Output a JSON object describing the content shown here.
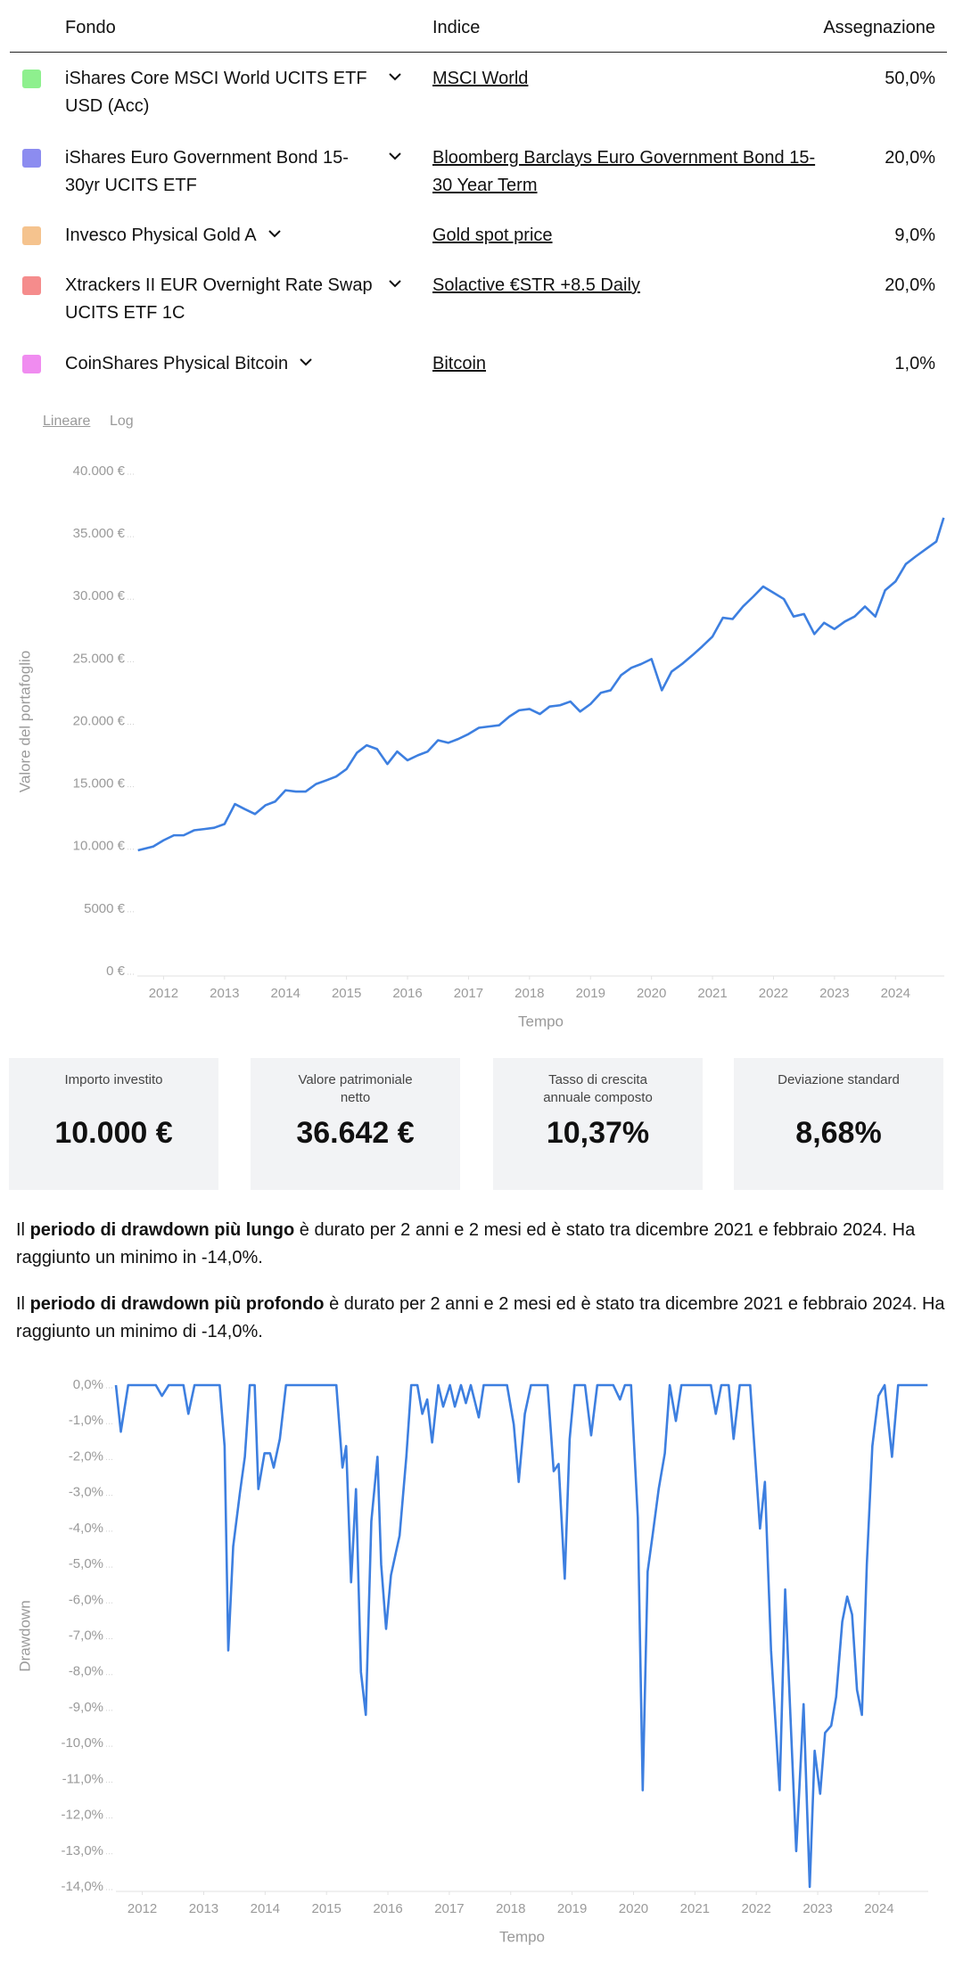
{
  "table": {
    "headers": [
      "Fondo",
      "Indice",
      "Assegnazione"
    ],
    "rows": [
      {
        "color": "#8ef08e",
        "fund": "iShares Core MSCI World UCITS ETF USD (Acc)",
        "index": "MSCI World",
        "allocation": "50,0%"
      },
      {
        "color": "#8c8cf0",
        "fund": "iShares Euro Government Bond 15-30yr UCITS ETF",
        "index": "Bloomberg Barclays Euro Government Bond 15-30 Year Term",
        "allocation": "20,0%"
      },
      {
        "color": "#f5c38e",
        "fund": "Invesco Physical Gold A",
        "index": "Gold spot price",
        "allocation": "9,0%"
      },
      {
        "color": "#f58c8c",
        "fund": "Xtrackers II EUR Overnight Rate Swap UCITS ETF 1C",
        "index": "Solactive €STR +8.5 Daily",
        "allocation": "20,0%"
      },
      {
        "color": "#f08cf0",
        "fund": "CoinShares Physical Bitcoin",
        "index": "Bitcoin",
        "allocation": "1,0%"
      }
    ]
  },
  "scale_toggle": [
    "Lineare",
    "Log"
  ],
  "chart_data": [
    {
      "type": "line",
      "xlabel": "Tempo",
      "ylabel": "Valore del portafoglio",
      "color": "#3d7fe0",
      "x": [
        2011.58,
        2011.83,
        2012.0,
        2012.17,
        2012.33,
        2012.5,
        2012.67,
        2012.83,
        2013.0,
        2013.17,
        2013.33,
        2013.5,
        2013.67,
        2013.83,
        2014.0,
        2014.17,
        2014.33,
        2014.5,
        2014.67,
        2014.83,
        2015.0,
        2015.17,
        2015.33,
        2015.5,
        2015.67,
        2015.83,
        2016.0,
        2016.17,
        2016.33,
        2016.5,
        2016.67,
        2016.83,
        2017.0,
        2017.17,
        2017.33,
        2017.5,
        2017.67,
        2017.83,
        2018.0,
        2018.17,
        2018.33,
        2018.5,
        2018.67,
        2018.83,
        2019.0,
        2019.17,
        2019.33,
        2019.5,
        2019.67,
        2019.83,
        2020.0,
        2020.17,
        2020.33,
        2020.5,
        2020.67,
        2020.83,
        2021.0,
        2021.17,
        2021.33,
        2021.5,
        2021.67,
        2021.83,
        2022.0,
        2022.17,
        2022.33,
        2022.5,
        2022.67,
        2022.83,
        2023.0,
        2023.17,
        2023.33,
        2023.5,
        2023.67,
        2023.83,
        2024.0,
        2024.17,
        2024.33,
        2024.5,
        2024.67,
        2024.79
      ],
      "values": [
        9700,
        10000,
        10500,
        10900,
        10900,
        11300,
        11400,
        11500,
        11800,
        13400,
        13000,
        12600,
        13300,
        13600,
        14500,
        14400,
        14400,
        15000,
        15300,
        15600,
        16200,
        17500,
        18100,
        17800,
        16600,
        17600,
        16900,
        17300,
        17600,
        18500,
        18300,
        18600,
        19000,
        19500,
        19600,
        19700,
        20400,
        20900,
        21000,
        20600,
        21200,
        21300,
        21600,
        20800,
        21400,
        22300,
        22500,
        23700,
        24300,
        24600,
        25000,
        22500,
        24000,
        24600,
        25300,
        26000,
        26800,
        28300,
        28200,
        29200,
        30000,
        30800,
        30300,
        29800,
        28400,
        28600,
        27000,
        27900,
        27400,
        28000,
        28400,
        29200,
        28400,
        30500,
        31200,
        32600,
        33200,
        33800,
        34400,
        36300
      ],
      "xlim": [
        2011.57,
        2024.8
      ],
      "xticks": [
        2012,
        2013,
        2014,
        2015,
        2016,
        2017,
        2018,
        2019,
        2020,
        2021,
        2022,
        2023,
        2024
      ],
      "ylim": [
        0,
        40000
      ],
      "yticks": [
        {
          "value": 0,
          "label": "0 €"
        },
        {
          "value": 5000,
          "label": "5000 €"
        },
        {
          "value": 10000,
          "label": "10.000 €"
        },
        {
          "value": 15000,
          "label": "15.000 €"
        },
        {
          "value": 20000,
          "label": "20.000 €"
        },
        {
          "value": 25000,
          "label": "25.000 €"
        },
        {
          "value": 30000,
          "label": "30.000 €"
        },
        {
          "value": 35000,
          "label": "35.000 €"
        },
        {
          "value": 40000,
          "label": "40.000 €"
        }
      ]
    },
    {
      "type": "line",
      "xlabel": "Tempo",
      "ylabel": "Drawdown",
      "color": "#3d7fe0",
      "x": [
        2011.57,
        2011.65,
        2011.77,
        2012.22,
        2012.32,
        2012.43,
        2012.67,
        2012.75,
        2012.85,
        2013.26,
        2013.34,
        2013.4,
        2013.48,
        2013.59,
        2013.67,
        2013.75,
        2013.83,
        2013.89,
        2013.99,
        2014.08,
        2014.14,
        2014.24,
        2014.34,
        2015.16,
        2015.26,
        2015.32,
        2015.4,
        2015.48,
        2015.56,
        2015.64,
        2015.73,
        2015.83,
        2015.89,
        2015.97,
        2016.05,
        2016.19,
        2016.3,
        2016.38,
        2016.48,
        2016.56,
        2016.64,
        2016.72,
        2016.82,
        2016.9,
        2017.01,
        2017.09,
        2017.19,
        2017.27,
        2017.35,
        2017.48,
        2017.56,
        2017.94,
        2018.05,
        2018.13,
        2018.23,
        2018.33,
        2018.6,
        2018.7,
        2018.78,
        2018.88,
        2018.96,
        2019.04,
        2019.21,
        2019.31,
        2019.41,
        2019.67,
        2019.78,
        2019.86,
        2019.96,
        2020.07,
        2020.15,
        2020.23,
        2020.31,
        2020.41,
        2020.51,
        2020.59,
        2020.69,
        2020.78,
        2021.26,
        2021.34,
        2021.43,
        2021.55,
        2021.63,
        2021.73,
        2021.9,
        2022.0,
        2022.06,
        2022.14,
        2022.24,
        2022.38,
        2022.47,
        2022.55,
        2022.65,
        2022.77,
        2022.87,
        2022.95,
        2023.04,
        2023.12,
        2023.22,
        2023.3,
        2023.4,
        2023.48,
        2023.56,
        2023.64,
        2023.72,
        2023.8,
        2023.89,
        2023.99,
        2024.09,
        2024.21,
        2024.31,
        2024.79
      ],
      "values": [
        0,
        -1.3,
        0,
        0,
        -0.3,
        0,
        0,
        -0.8,
        0,
        0,
        -1.7,
        -7.4,
        -4.5,
        -3.0,
        -2.0,
        0,
        0,
        -2.9,
        -1.9,
        -1.9,
        -2.3,
        -1.5,
        0,
        0,
        -2.3,
        -1.7,
        -5.5,
        -2.9,
        -8.0,
        -9.2,
        -3.8,
        -2.0,
        -5.0,
        -6.8,
        -5.3,
        -4.2,
        -2.0,
        0,
        0,
        -0.8,
        -0.4,
        -1.6,
        0,
        -0.6,
        0,
        -0.6,
        0,
        -0.5,
        0,
        -0.9,
        0,
        0,
        -1.1,
        -2.7,
        -0.8,
        0,
        0,
        -2.4,
        -2.2,
        -5.4,
        -1.5,
        0,
        0,
        -1.4,
        0,
        0,
        -0.4,
        0,
        0,
        -3.7,
        -11.3,
        -5.2,
        -4.2,
        -2.9,
        -1.9,
        0,
        -1.0,
        0,
        0,
        -0.8,
        0,
        0,
        -1.5,
        0,
        0,
        -2.5,
        -4.0,
        -2.7,
        -7.4,
        -11.3,
        -5.7,
        -9.0,
        -13.0,
        -8.9,
        -14.0,
        -10.2,
        -11.4,
        -9.7,
        -9.5,
        -8.7,
        -6.6,
        -5.9,
        -6.4,
        -8.5,
        -9.2,
        -5.0,
        -1.7,
        -0.3,
        0,
        -2.0,
        0,
        0
      ],
      "xlim": [
        2011.57,
        2024.8
      ],
      "xticks": [
        2012,
        2013,
        2014,
        2015,
        2016,
        2017,
        2018,
        2019,
        2020,
        2021,
        2022,
        2023,
        2024
      ],
      "ylim": [
        -14,
        0
      ],
      "yticks": [
        {
          "value": 0,
          "label": "0,0%"
        },
        {
          "value": -1,
          "label": "-1,0%"
        },
        {
          "value": -2,
          "label": "-2,0%"
        },
        {
          "value": -3,
          "label": "-3,0%"
        },
        {
          "value": -4,
          "label": "-4,0%"
        },
        {
          "value": -5,
          "label": "-5,0%"
        },
        {
          "value": -6,
          "label": "-6,0%"
        },
        {
          "value": -7,
          "label": "-7,0%"
        },
        {
          "value": -8,
          "label": "-8,0%"
        },
        {
          "value": -9,
          "label": "-9,0%"
        },
        {
          "value": -10,
          "label": "-10,0%"
        },
        {
          "value": -11,
          "label": "-11,0%"
        },
        {
          "value": -12,
          "label": "-12,0%"
        },
        {
          "value": -13,
          "label": "-13,0%"
        },
        {
          "value": -14,
          "label": "-14,0%"
        }
      ]
    }
  ],
  "stats": [
    {
      "label": "Importo investito",
      "value": "10.000 €"
    },
    {
      "label": "Valore patrimoniale netto",
      "value": "36.642 €"
    },
    {
      "label": "Tasso di crescita annuale composto",
      "value": "10,37%"
    },
    {
      "label": "Deviazione standard",
      "value": "8,68%"
    }
  ],
  "paragraphs": [
    [
      {
        "text": "Il "
      },
      {
        "text": "periodo di drawdown più lungo",
        "bold": true
      },
      {
        "text": " è durato per 2 anni e 2 mesi ed è stato tra dicembre 2021 e febbraio 2024. Ha raggiunto un minimo in -14,0%."
      }
    ],
    [
      {
        "text": "Il "
      },
      {
        "text": "periodo di drawdown più profondo",
        "bold": true
      },
      {
        "text": " è durato per 2 anni e 2 mesi ed è stato tra dicembre 2021 e febbraio 2024. Ha raggiunto un minimo di -14,0%."
      }
    ]
  ]
}
